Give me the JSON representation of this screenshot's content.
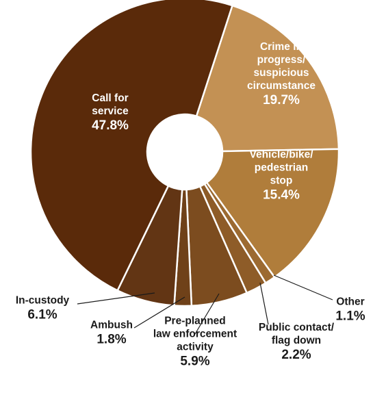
{
  "chart_data": {
    "type": "pie",
    "title": "",
    "slices": [
      {
        "label": [
          "Crime in",
          "progress/",
          "suspicious",
          "circumstance"
        ],
        "value": 19.7,
        "display": "19.7%",
        "color": "#c39154"
      },
      {
        "label": [
          "Vehicle/bike/",
          "pedestrian",
          "stop"
        ],
        "value": 15.4,
        "display": "15.4%",
        "color": "#b07d3b"
      },
      {
        "label": [
          "Other"
        ],
        "value": 1.1,
        "display": "1.1%",
        "color": "#9c6a31"
      },
      {
        "label": [
          "Public contact/",
          "flag down"
        ],
        "value": 2.2,
        "display": "2.2%",
        "color": "#8e5c28"
      },
      {
        "label": [
          "Pre-planned",
          "law enforcement",
          "activity"
        ],
        "value": 5.9,
        "display": "5.9%",
        "color": "#7c4c1f"
      },
      {
        "label": [
          "Ambush"
        ],
        "value": 1.8,
        "display": "1.8%",
        "color": "#6f4119"
      },
      {
        "label": [
          "In-custody"
        ],
        "value": 6.1,
        "display": "6.1%",
        "color": "#623514"
      },
      {
        "label": [
          "Call for",
          "service"
        ],
        "value": 47.8,
        "display": "47.8%",
        "color": "#5a2a0a"
      }
    ]
  }
}
